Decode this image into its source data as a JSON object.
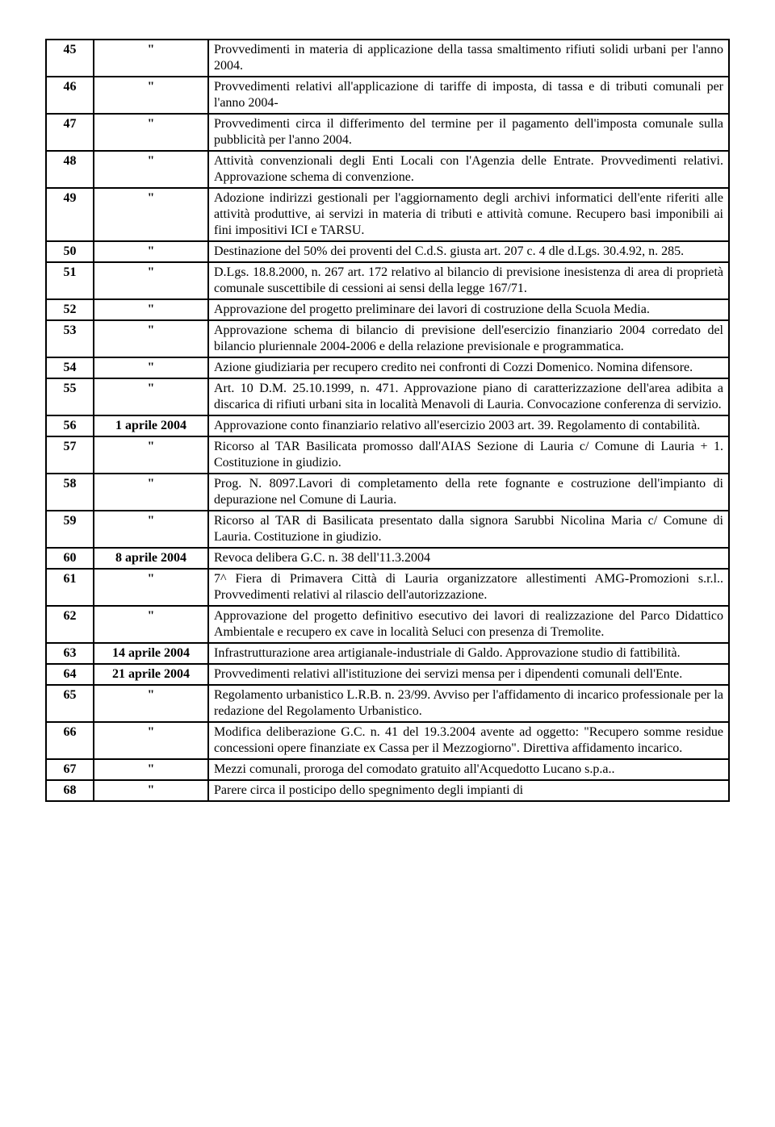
{
  "rows": [
    {
      "num": "45",
      "date": "\"",
      "desc": "Provvedimenti in materia di applicazione della tassa smaltimento rifiuti solidi urbani per l'anno 2004."
    },
    {
      "num": "46",
      "date": "\"",
      "desc": "Provvedimenti relativi all'applicazione di tariffe di imposta, di tassa e di tributi comunali per l'anno 2004-"
    },
    {
      "num": "47",
      "date": "\"",
      "desc": "Provvedimenti circa il differimento del termine per il pagamento dell'imposta comunale sulla pubblicità per l'anno 2004."
    },
    {
      "num": "48",
      "date": "\"",
      "desc": "Attività convenzionali degli Enti Locali con l'Agenzia delle Entrate. Provvedimenti relativi. Approvazione schema di convenzione."
    },
    {
      "num": "49",
      "date": "\"",
      "desc": "Adozione indirizzi gestionali per l'aggiornamento degli archivi informatici dell'ente riferiti alle attività produttive, ai servizi in materia di tributi e attività comune. Recupero basi imponibili ai fini impositivi ICI e TARSU."
    },
    {
      "num": "50",
      "date": "\"",
      "desc": "Destinazione del 50% dei proventi del C.d.S. giusta art. 207 c. 4 dle d.Lgs. 30.4.92, n. 285."
    },
    {
      "num": "51",
      "date": "\"",
      "desc": "D.Lgs. 18.8.2000, n. 267 art. 172 relativo al bilancio di previsione inesistenza di area di proprietà comunale suscettibile di cessioni ai sensi della legge 167/71."
    },
    {
      "num": "52",
      "date": "\"",
      "desc": "Approvazione del progetto preliminare dei lavori di costruzione della Scuola Media."
    },
    {
      "num": "53",
      "date": "\"",
      "desc": "Approvazione schema di bilancio di previsione dell'esercizio finanziario 2004 corredato del bilancio pluriennale 2004-2006 e della relazione previsionale e programmatica."
    },
    {
      "num": "54",
      "date": "\"",
      "desc": "Azione giudiziaria per recupero credito nei confronti di Cozzi Domenico. Nomina difensore."
    },
    {
      "num": "55",
      "date": "\"",
      "desc": "Art. 10 D.M. 25.10.1999, n. 471. Approvazione piano di caratterizzazione dell'area adibita a discarica di rifiuti urbani sita in località Menavoli di Lauria. Convocazione conferenza di servizio."
    },
    {
      "num": "56",
      "date": "1 aprile 2004",
      "desc": "Approvazione conto finanziario relativo all'esercizio 2003 art. 39. Regolamento di contabilità."
    },
    {
      "num": "57",
      "date": "\"",
      "desc": "Ricorso al TAR Basilicata promosso dall'AIAS Sezione di Lauria c/ Comune di Lauria + 1. Costituzione in giudizio."
    },
    {
      "num": "58",
      "date": "\"",
      "desc": "Prog. N. 8097.Lavori di completamento della rete fognante e costruzione dell'impianto di depurazione nel Comune di Lauria."
    },
    {
      "num": "59",
      "date": "\"",
      "desc": "Ricorso al TAR di Basilicata presentato dalla signora Sarubbi Nicolina Maria c/ Comune di Lauria. Costituzione in giudizio."
    },
    {
      "num": "60",
      "date": "8 aprile 2004",
      "desc": "Revoca delibera G.C. n. 38 dell'11.3.2004"
    },
    {
      "num": "61",
      "date": "\"",
      "desc": "7^ Fiera di Primavera Città di Lauria organizzatore allestimenti AMG-Promozioni s.r.l.. Provvedimenti relativi al rilascio dell'autorizzazione."
    },
    {
      "num": "62",
      "date": "\"",
      "desc": "Approvazione del progetto definitivo esecutivo dei lavori di realizzazione del Parco Didattico Ambientale e recupero ex cave in località Seluci con presenza di Tremolite."
    },
    {
      "num": "63",
      "date": "14 aprile 2004",
      "desc": "Infrastrutturazione area artigianale-industriale di Galdo.\nApprovazione studio di fattibilità."
    },
    {
      "num": "64",
      "date": "21 aprile 2004",
      "desc": "Provvedimenti relativi all'istituzione dei servizi mensa per i dipendenti comunali dell'Ente."
    },
    {
      "num": "65",
      "date": "\"",
      "desc": "Regolamento urbanistico L.R.B. n. 23/99. Avviso per l'affidamento di incarico professionale per la redazione del Regolamento Urbanistico."
    },
    {
      "num": "66",
      "date": "\"",
      "desc": "Modifica deliberazione G.C. n. 41 del 19.3.2004 avente ad oggetto: \"Recupero somme residue concessioni opere finanziate ex Cassa per il Mezzogiorno\". Direttiva affidamento incarico."
    },
    {
      "num": "67",
      "date": "\"",
      "desc": "Mezzi comunali, proroga del comodato gratuito all'Acquedotto Lucano s.p.a.."
    },
    {
      "num": "68",
      "date": "\"",
      "desc": "Parere circa il posticipo dello spegnimento degli impianti di"
    }
  ]
}
